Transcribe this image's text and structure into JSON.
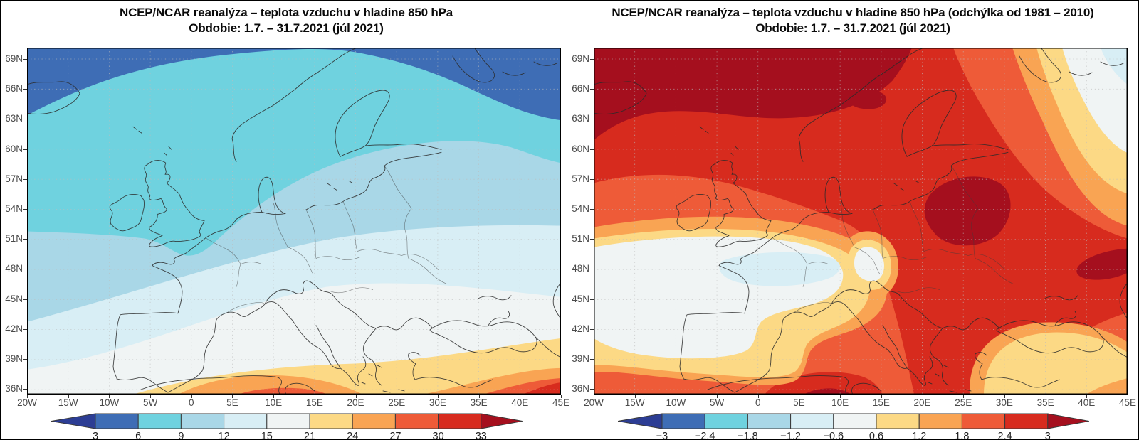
{
  "panels": [
    {
      "id": "temperature",
      "title_line1": "NCEP/NCAR reanalýza – teplota vzduchu v hladine 850 hPa",
      "title_line2": "Obdobie: 1.7. – 31.7.2021 (júl 2021)",
      "colorbar_values": [
        "3",
        "6",
        "9",
        "12",
        "15",
        "21",
        "24",
        "27",
        "30",
        "33"
      ]
    },
    {
      "id": "anomaly",
      "title_line1": "NCEP/NCAR reanalýza – teplota vzduchu v hladine 850 hPa (odchýlka od 1981 – 2010)",
      "title_line2": "Obdobie: 1.7. – 31.7.2021 (júl 2021)",
      "colorbar_values": [
        "−3",
        "−2.4",
        "−1.8",
        "−1.2",
        "−0.6",
        "0.6",
        "1.2",
        "1.8",
        "2.4",
        "3"
      ]
    }
  ],
  "axes": {
    "lat_labels": [
      "69N",
      "66N",
      "63N",
      "60N",
      "57N",
      "54N",
      "51N",
      "48N",
      "45N",
      "42N",
      "39N",
      "36N"
    ],
    "lon_labels": [
      "20W",
      "15W",
      "10W",
      "5W",
      "0",
      "5E",
      "10E",
      "15E",
      "20E",
      "25E",
      "30E",
      "35E",
      "40E",
      "45E"
    ]
  },
  "colorbar_colors": {
    "arrow_low": "#2c3d94",
    "segments": [
      "#3e6db5",
      "#6fd2df",
      "#a9d7e7",
      "#d8eef5",
      "#f0f4f4",
      "#fcd985",
      "#f9a453",
      "#ee5b38",
      "#d72b1e"
    ],
    "arrow_high": "#a50f1e",
    "outline": "#3a3a3a"
  },
  "chart_data": {
    "type": "heatmap",
    "maps": [
      {
        "title": "NCEP/NCAR reanalýza – teplota vzduchu v hladine 850 hPa",
        "period": "Obdobie: 1.7. – 31.7.2021 (júl 2021)",
        "region": "Europe, 20W–45E, 36N–69N",
        "scale_values": [
          3,
          6,
          9,
          12,
          15,
          21,
          24,
          27,
          30,
          33
        ],
        "pattern_summary": "Coldest air (3–6) in the far northwest near Iceland and along the northern edge; 6–9 over the British Isles and Norwegian Sea with a tongue over southern England; 9–15 across central Europe and Scandinavia's south; 15–21 over southern and eastern Europe; 21–33 over North Africa and the Middle East with the warmest core near the southeastern corner"
      },
      {
        "title": "NCEP/NCAR reanalýza – teplota vzduchu v hladine 850 hPa (odchýlka od 1981 – 2010)",
        "period": "Obdobie: 1.7. – 31.7.2021 (júl 2021)",
        "region": "Europe, 20W–45E, 36N–69N",
        "scale_values": [
          -3,
          -2.4,
          -1.8,
          -1.2,
          -0.6,
          0.6,
          1.2,
          1.8,
          2.4,
          3
        ],
        "pattern_summary": "Strong positive anomaly (>3) across the far north from Iceland to northern Scandinavia and in cores over the Baltics/Belarus and eastern Ukraine; 2.4–3 over Scandinavia, eastern Europe, the Balkans and Algeria; near normal (−0.6 to 0.6) over France and Iberia with a weak negative patch (−1.2 to −0.6) over northwestern France; near normal again in the far northeastern corner"
      }
    ]
  }
}
